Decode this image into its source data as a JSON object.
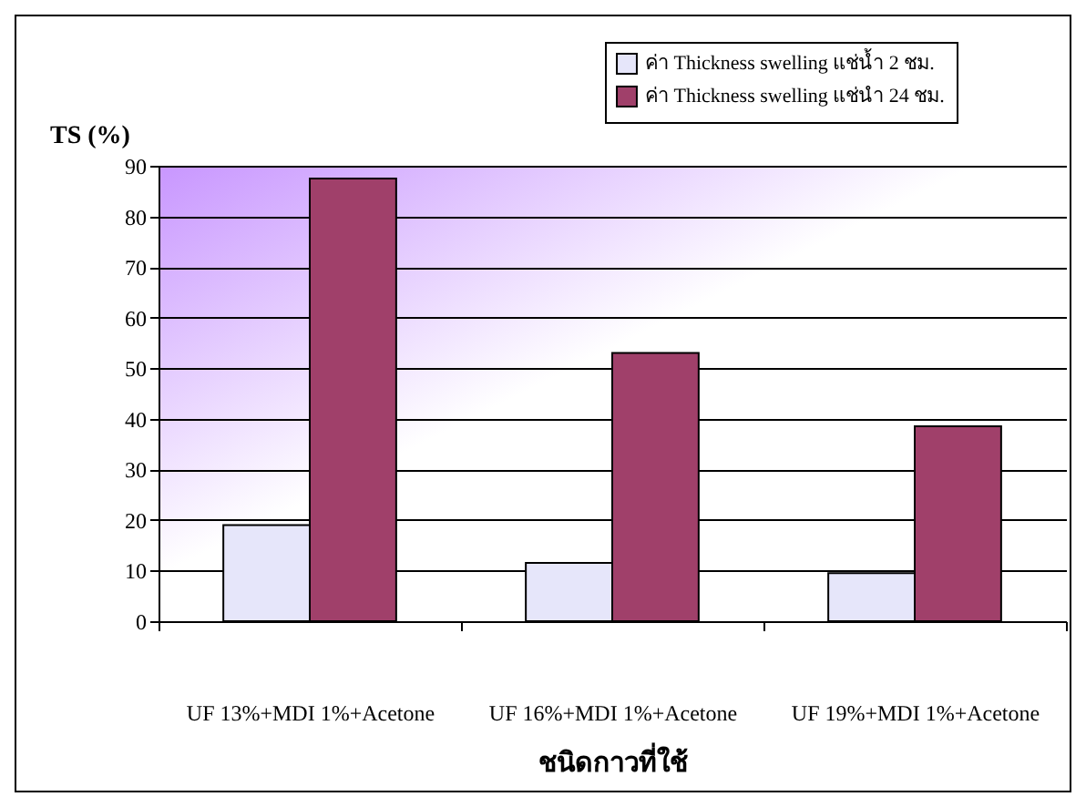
{
  "chart_data": {
    "type": "bar",
    "ylabel": "TS (%)",
    "xlabel": "ชนิดกาวที่ใช้",
    "categories": [
      "UF 13%+MDI 1%+Acetone",
      "UF 16%+MDI 1%+Acetone",
      "UF 19%+MDI 1%+Acetone"
    ],
    "series": [
      {
        "name": "ค่า Thickness swelling แช่น้ำ 2 ชม.",
        "color": "#e6e6fa",
        "values": [
          19,
          11.5,
          9.5
        ]
      },
      {
        "name": "ค่า Thickness swelling แช่นำ 24 ชม.",
        "color": "#a0406a",
        "values": [
          87.5,
          53,
          38.5
        ]
      }
    ],
    "ylim": [
      0,
      90
    ],
    "yticks": [
      0,
      10,
      20,
      30,
      40,
      50,
      60,
      70,
      80,
      90
    ],
    "grid": "y",
    "legend": "top right"
  }
}
